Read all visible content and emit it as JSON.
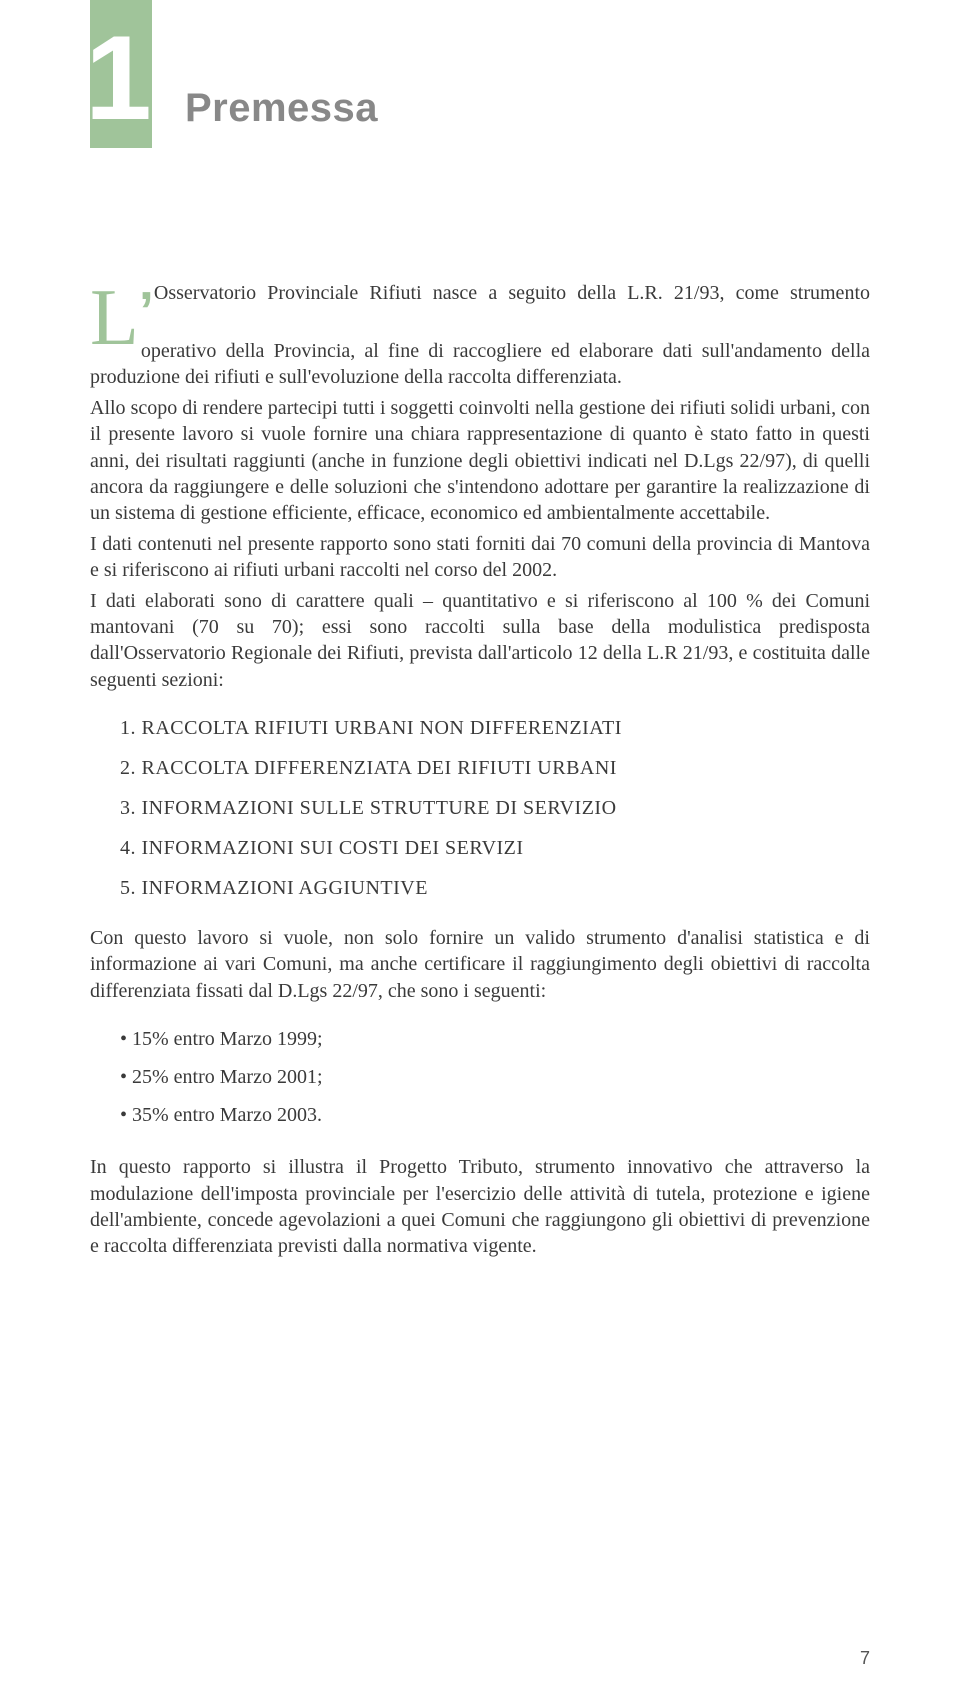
{
  "chapter": {
    "number": "1",
    "title": "Premessa"
  },
  "intro": {
    "dropcap": "L",
    "apostrophe": "’",
    "p1": "Osservatorio Provinciale Rifiuti nasce a seguito della L.R. 21/93, come strumento operativo della Provincia, al fine di raccogliere ed elaborare dati sull'andamento della produzione dei rifiuti e sull'evoluzione della raccolta differenziata.",
    "p2": "Allo scopo di rendere partecipi tutti i soggetti coinvolti nella gestione dei rifiuti solidi urbani, con il presente lavoro si vuole fornire una chiara rappresentazione di quanto è stato fatto in questi anni, dei risultati raggiunti (anche in funzione degli obiettivi indicati nel D.Lgs 22/97), di quelli ancora da raggiungere e delle soluzioni che s'intendono adottare per garantire la realizzazione di un sistema di gestione efficiente, efficace, economico ed ambientalmente accettabile.",
    "p3": "I dati contenuti nel presente rapporto sono stati forniti dai 70 comuni della provincia di Mantova e si riferiscono ai rifiuti urbani raccolti nel corso del 2002.",
    "p4": "I dati elaborati sono di carattere quali – quantitativo e si riferiscono al 100 % dei Comuni mantovani (70 su 70); essi sono raccolti sulla base della modulistica predisposta dall'Osservatorio Regionale dei Rifiuti, prevista dall'articolo 12 della L.R 21/93, e costituita dalle seguenti sezioni:"
  },
  "sections": [
    "1. RACCOLTA RIFIUTI URBANI NON DIFFERENZIATI",
    "2. RACCOLTA DIFFERENZIATA DEI RIFIUTI URBANI",
    "3. INFORMAZIONI SULLE STRUTTURE DI SERVIZIO",
    "4. INFORMAZIONI SUI COSTI DEI SERVIZI",
    "5. INFORMAZIONI AGGIUNTIVE"
  ],
  "objectives_intro": "Con questo lavoro si vuole, non solo fornire un valido strumento d'analisi statistica e di informazione ai vari Comuni, ma anche certificare il raggiungimento degli obiettivi di raccolta differenziata fissati dal D.Lgs 22/97, che sono i seguenti:",
  "targets": [
    "15% entro Marzo 1999;",
    "25% entro Marzo 2001;",
    "35% entro Marzo 2003."
  ],
  "closing": "In questo rapporto si illustra il Progetto Tributo, strumento innovativo che attraverso la modulazione dell'imposta provinciale per l'esercizio delle attività di tutela, protezione e igiene dell'ambiente, concede agevolazioni a quei Comuni che raggiungono gli obiettivi di prevenzione e raccolta differenziata previsti dalla normativa vigente.",
  "page_number": "7",
  "colors": {
    "accent_green": "#a0c49a",
    "title_gray": "#888888",
    "body_text": "#3a3a3a"
  }
}
